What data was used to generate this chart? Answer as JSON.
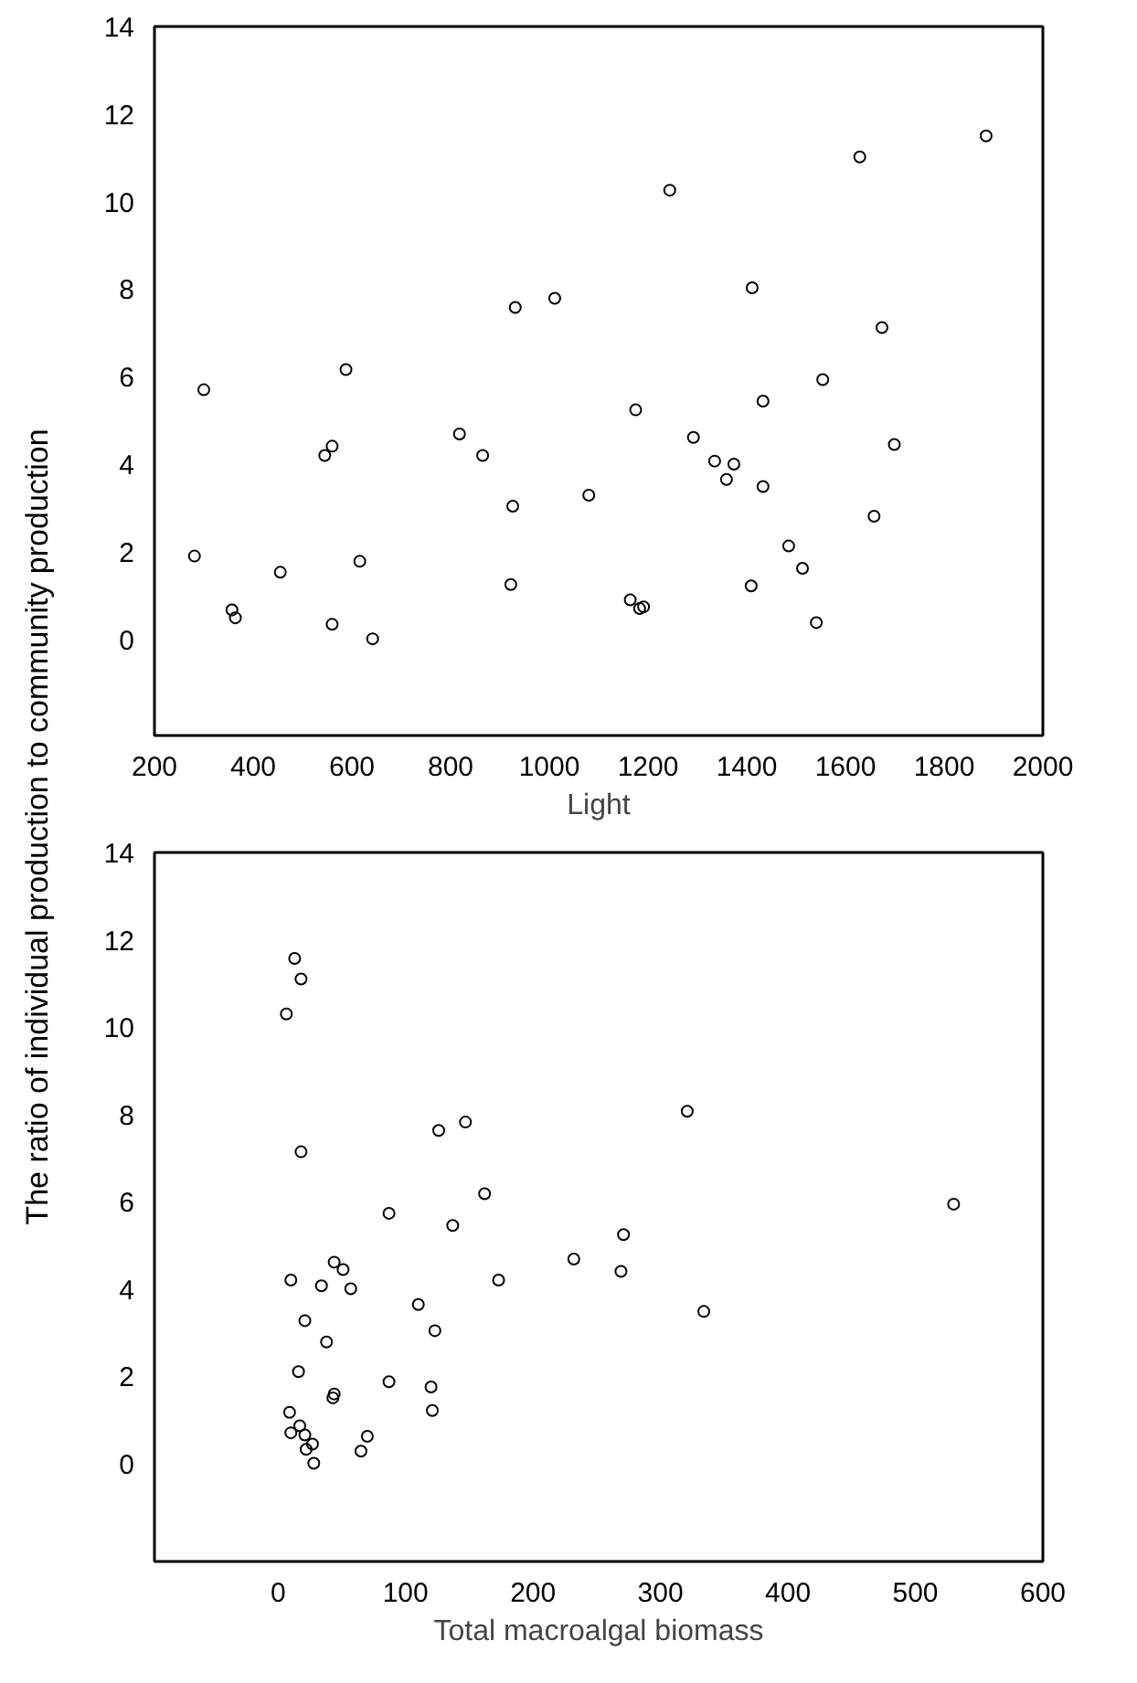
{
  "chart_data": [
    {
      "type": "scatter",
      "xlabel": "Light",
      "ylabel": "The ratio of individual production to community production",
      "marker": "circle",
      "grid": false,
      "xlim": [
        200,
        2000
      ],
      "ylim": [
        -2.2,
        14
      ],
      "xticks": [
        200,
        400,
        600,
        800,
        1000,
        1200,
        1400,
        1600,
        1800,
        2000
      ],
      "yticks": [
        0,
        2,
        4,
        6,
        8,
        10,
        12,
        14
      ],
      "series": [
        {
          "color": "#000000",
          "x": [
            281,
            300,
            357,
            364,
            455,
            545,
            560,
            560,
            588,
            616,
            642,
            818,
            865,
            926,
            922,
            931,
            1011,
            1080,
            1244,
            1175,
            1164,
            1183,
            1191,
            1292,
            1335,
            1374,
            1359,
            1433,
            1433,
            1411,
            1409,
            1485,
            1513,
            1541,
            1554,
            1629,
            1674,
            1658,
            1699,
            1885
          ],
          "values": [
            1.9,
            5.7,
            0.67,
            0.49,
            1.53,
            4.2,
            4.41,
            0.34,
            6.16,
            1.78,
            0.01,
            4.69,
            4.2,
            3.04,
            1.25,
            7.58,
            7.79,
            3.29,
            10.26,
            5.24,
            0.9,
            0.7,
            0.74,
            4.61,
            4.07,
            4.0,
            3.65,
            5.44,
            3.49,
            8.03,
            1.22,
            2.13,
            1.62,
            0.38,
            5.93,
            11.02,
            7.12,
            2.81,
            4.45,
            11.5
          ]
        }
      ]
    },
    {
      "type": "scatter",
      "xlabel": "Total macroalgal biomass",
      "marker": "circle",
      "grid": false,
      "xlim": [
        -97,
        600
      ],
      "ylim": [
        -2.25,
        14
      ],
      "xticks": [
        0,
        100,
        200,
        300,
        400,
        500,
        600
      ],
      "yticks": [
        0,
        2,
        4,
        6,
        8,
        10,
        12,
        14
      ],
      "series": [
        {
          "color": "#000000",
          "x": [
            13,
            18,
            6.5,
            18,
            126,
            147,
            162,
            87,
            137,
            173,
            232,
            44,
            51,
            10,
            34,
            57,
            110,
            21,
            123,
            38,
            16,
            87,
            120,
            44,
            43,
            121,
            9,
            10,
            17,
            21,
            22,
            27,
            28,
            65,
            70,
            321,
            530,
            271,
            269,
            334
          ],
          "values": [
            11.57,
            11.1,
            10.3,
            7.14,
            7.63,
            7.82,
            6.18,
            5.73,
            5.45,
            4.2,
            4.68,
            4.61,
            4.44,
            4.2,
            4.07,
            4.0,
            3.64,
            3.27,
            3.04,
            2.78,
            2.1,
            1.87,
            1.75,
            1.59,
            1.5,
            1.21,
            1.17,
            0.7,
            0.86,
            0.65,
            0.32,
            0.44,
            0.0,
            0.28,
            0.62,
            8.07,
            5.94,
            5.24,
            4.4,
            3.48
          ]
        }
      ]
    }
  ]
}
